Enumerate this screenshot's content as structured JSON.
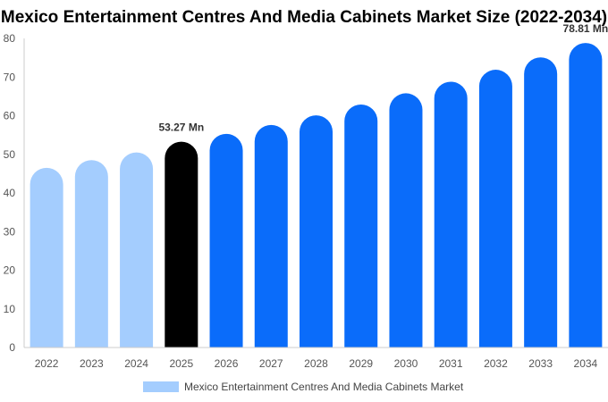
{
  "chart_data": {
    "type": "bar",
    "title": "Mexico Entertainment Centres And Media Cabinets Market Size (2022-2034)",
    "categories": [
      "2022",
      "2023",
      "2024",
      "2025",
      "2026",
      "2027",
      "2028",
      "2029",
      "2030",
      "2031",
      "2032",
      "2033",
      "2034"
    ],
    "series": [
      {
        "name": "Mexico Entertainment Centres And Media Cabinets Market",
        "values": [
          46.5,
          48.5,
          50.5,
          53.27,
          55.3,
          57.6,
          60.1,
          62.9,
          65.8,
          68.8,
          71.9,
          75.1,
          78.81
        ],
        "colors": [
          "#a4cdfe",
          "#a4cdfe",
          "#a4cdfe",
          "#000000",
          "#0a6cfa",
          "#0a6cfa",
          "#0a6cfa",
          "#0a6cfa",
          "#0a6cfa",
          "#0a6cfa",
          "#0a6cfa",
          "#0a6cfa",
          "#0a6cfa"
        ]
      }
    ],
    "data_labels": [
      {
        "category": "2025",
        "text": "53.27 Mn"
      },
      {
        "category": "2034",
        "text": "78.81 Mn"
      }
    ],
    "ylim": [
      0,
      80
    ],
    "yticks": [
      0,
      10,
      20,
      30,
      40,
      50,
      60,
      70,
      80
    ],
    "grid": false,
    "legend_position": "bottom",
    "legend_color": "#a4cdfe"
  }
}
